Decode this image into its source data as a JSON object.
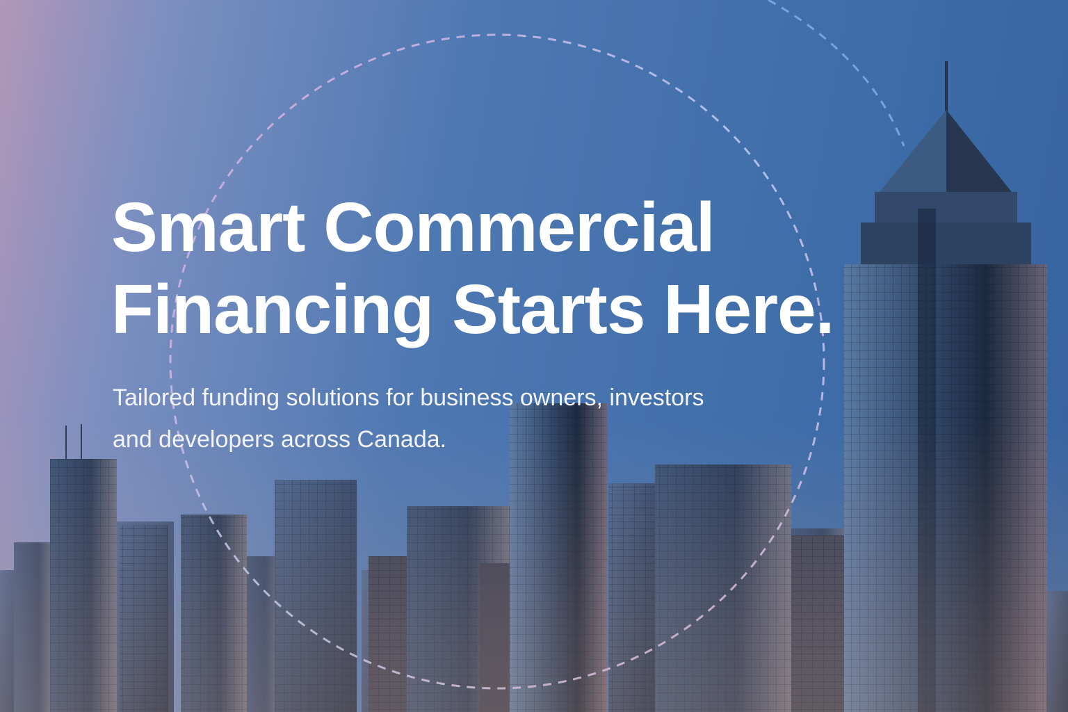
{
  "hero": {
    "headline_line1": "Smart Commercial",
    "headline_line2": "Financing Starts Here.",
    "subtitle_line1": "Tailored funding solutions for business owners, investors",
    "subtitle_line2": "and developers across Canada."
  },
  "colors": {
    "sky_left": "#b197b8",
    "sky_mid": "#4e78b2",
    "sky_right": "#36639f",
    "text": "#ffffff",
    "ring_stroke": "#b9c8f0",
    "ring_stroke_warm": "#e6a9d6"
  }
}
